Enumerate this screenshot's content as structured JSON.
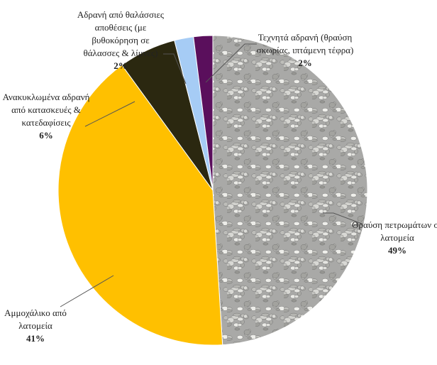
{
  "chart_data": {
    "type": "pie",
    "categories": [
      "Θραύση πετρωμάτων σε λατομεία",
      "Αμμοχάλικο από λατομεία",
      "Ανακυκλωμένα αδρανή από κατασκευές & κατεδαφίσεις",
      "Αδρανή από θαλάσσιες αποθέσεις (με βυθοκόρηση σε θάλασσες & λίμνες)",
      "Τεχνητά αδρανή (θραύση σκωρίας, ιπτάμενη τέφρα)"
    ],
    "values": [
      49,
      41,
      6,
      2,
      2
    ],
    "value_labels": [
      "49%",
      "41%",
      "6%",
      "2%",
      "2%"
    ],
    "colors": [
      "#a9a9a7",
      "#ffc000",
      "#2b2810",
      "#a6ccf5",
      "#5a0f5c"
    ]
  }
}
